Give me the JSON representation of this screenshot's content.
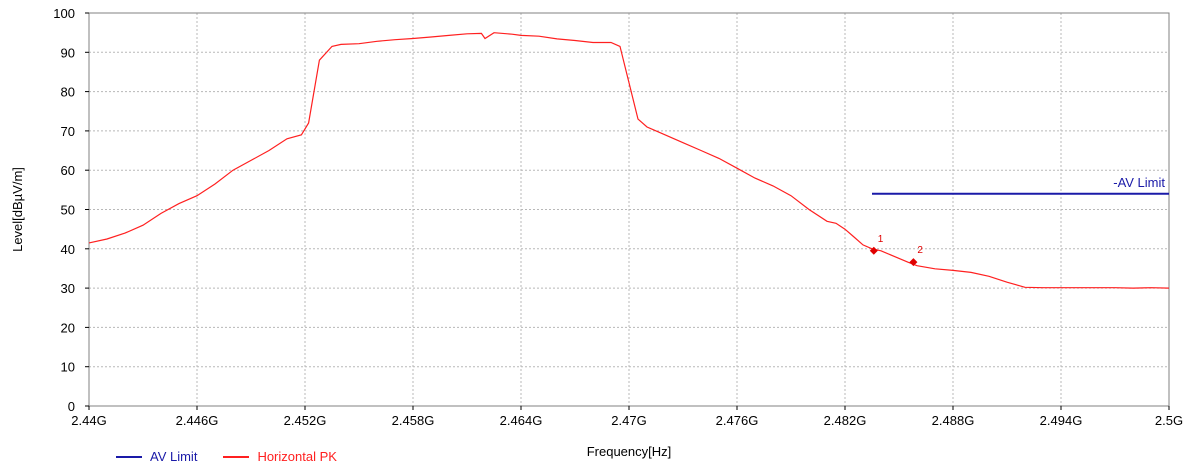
{
  "chart_data": {
    "type": "line",
    "xlabel": "Frequency[Hz]",
    "ylabel": "Level[dBµV/m]",
    "xlim": [
      2.44,
      2.5
    ],
    "ylim": [
      0,
      100
    ],
    "x_ticks": [
      2.44,
      2.446,
      2.452,
      2.458,
      2.464,
      2.47,
      2.476,
      2.482,
      2.488,
      2.494,
      2.5
    ],
    "x_tick_labels": [
      "2.44G",
      "2.446G",
      "2.452G",
      "2.458G",
      "2.464G",
      "2.47G",
      "2.476G",
      "2.482G",
      "2.488G",
      "2.494G",
      "2.5G"
    ],
    "y_ticks": [
      0,
      10,
      20,
      30,
      40,
      50,
      60,
      70,
      80,
      90,
      100
    ],
    "y_tick_labels": [
      "0",
      "10",
      "20",
      "30",
      "40",
      "50",
      "60",
      "70",
      "80",
      "90",
      "100"
    ],
    "grid": true,
    "legend_position": "bottom-left",
    "series": [
      {
        "name": "Horizontal PK",
        "color": "#ff2020",
        "x": [
          2.44,
          2.441,
          2.442,
          2.443,
          2.444,
          2.445,
          2.446,
          2.447,
          2.448,
          2.449,
          2.45,
          2.451,
          2.4518,
          2.4522,
          2.4528,
          2.4535,
          2.454,
          2.455,
          2.456,
          2.457,
          2.458,
          2.459,
          2.46,
          2.461,
          2.4618,
          2.462,
          2.4625,
          2.4635,
          2.464,
          2.465,
          2.466,
          2.467,
          2.468,
          2.469,
          2.4695,
          2.4705,
          2.471,
          2.472,
          2.473,
          2.474,
          2.475,
          2.476,
          2.477,
          2.478,
          2.479,
          2.48,
          2.481,
          2.4815,
          2.482,
          2.4825,
          2.483,
          2.4835,
          2.484,
          2.4855,
          2.486,
          2.487,
          2.488,
          2.489,
          2.49,
          2.491,
          2.492,
          2.493,
          2.494,
          2.495,
          2.496,
          2.497,
          2.498,
          2.499,
          2.5
        ],
        "y": [
          41.5,
          42.5,
          44,
          46,
          49,
          51.5,
          53.5,
          56.5,
          60,
          62.5,
          65,
          68,
          69,
          72,
          88,
          91.5,
          92,
          92.2,
          92.8,
          93.2,
          93.5,
          93.9,
          94.3,
          94.7,
          94.8,
          93.5,
          95,
          94.6,
          94.3,
          94.1,
          93.4,
          93,
          92.5,
          92.5,
          91.5,
          73,
          71,
          69,
          67,
          65,
          63,
          60.5,
          58,
          56,
          53.5,
          50,
          47,
          46.5,
          45,
          43,
          41,
          40,
          39.5,
          36.6,
          35.7,
          34.9,
          34.5,
          34,
          33,
          31.5,
          30.2,
          30.1,
          30.1,
          30.1,
          30.1,
          30.1,
          30,
          30.1,
          30
        ]
      },
      {
        "name": "AV Limit",
        "color": "#1a1aa8",
        "x": [
          2.4835,
          2.5
        ],
        "y": [
          54,
          54
        ]
      }
    ],
    "limit_label": "-AV Limit",
    "markers": [
      {
        "label": "1",
        "x": 2.4836,
        "y": 39.5
      },
      {
        "label": "2",
        "x": 2.4858,
        "y": 36.6
      }
    ]
  },
  "legend": {
    "items": [
      {
        "label": "AV Limit",
        "color": "#1a1aa8"
      },
      {
        "label": "Horizontal PK",
        "color": "#ff2020"
      }
    ]
  }
}
